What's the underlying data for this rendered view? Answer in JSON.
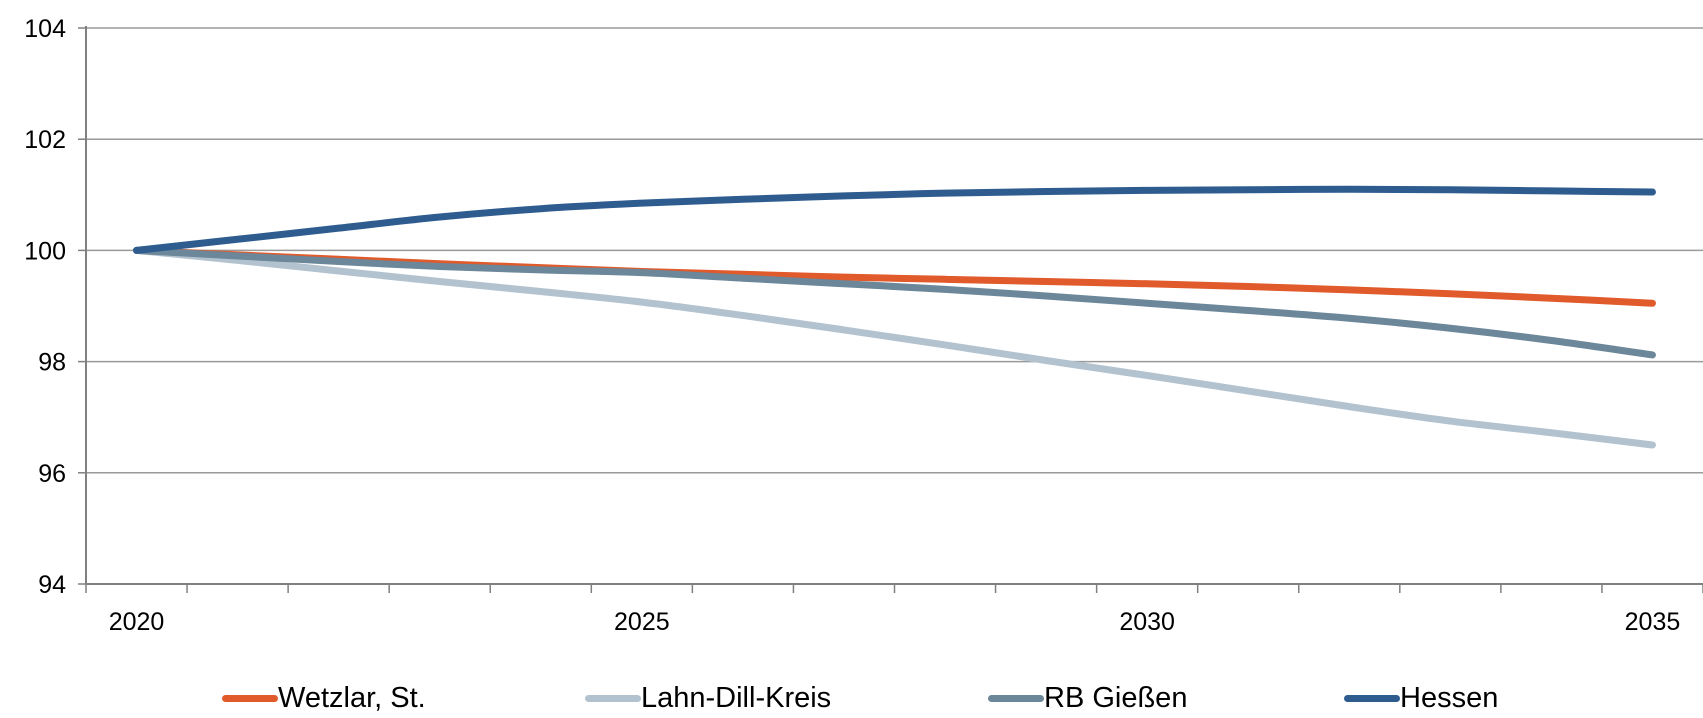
{
  "chart_data": {
    "type": "line",
    "title": "",
    "xlabel": "",
    "ylabel": "",
    "x": [
      2020,
      2021,
      2022,
      2023,
      2024,
      2025,
      2026,
      2027,
      2028,
      2029,
      2030,
      2031,
      2032,
      2033,
      2034,
      2035
    ],
    "xticks_labeled": [
      2020,
      2025,
      2030,
      2035
    ],
    "xlim": [
      2019.5,
      2035.5
    ],
    "ylim": [
      94,
      104
    ],
    "yticks": [
      94,
      96,
      98,
      100,
      102,
      104
    ],
    "grid": "horizontal",
    "legend_position": "bottom",
    "series": [
      {
        "name": "Wetzlar, St.",
        "color": "#E05A2B",
        "values": [
          100,
          99.92,
          99.84,
          99.76,
          99.69,
          99.62,
          99.57,
          99.52,
          99.48,
          99.44,
          99.4,
          99.35,
          99.29,
          99.22,
          99.14,
          99.05
        ]
      },
      {
        "name": "Lahn-Dill-Kreis",
        "color": "#B3C2CF",
        "values": [
          100,
          99.82,
          99.63,
          99.44,
          99.26,
          99.07,
          98.83,
          98.57,
          98.3,
          98.02,
          97.75,
          97.47,
          97.19,
          96.93,
          96.72,
          96.5
        ]
      },
      {
        "name": "RB Gießen",
        "color": "#6B8799",
        "values": [
          100,
          99.9,
          99.8,
          99.71,
          99.65,
          99.6,
          99.5,
          99.4,
          99.3,
          99.18,
          99.05,
          98.92,
          98.78,
          98.6,
          98.38,
          98.12
        ]
      },
      {
        "name": "Hessen",
        "color": "#2E5C8F",
        "values": [
          100,
          100.2,
          100.4,
          100.6,
          100.75,
          100.85,
          100.92,
          100.98,
          101.03,
          101.06,
          101.08,
          101.09,
          101.1,
          101.09,
          101.07,
          101.05
        ]
      }
    ]
  }
}
